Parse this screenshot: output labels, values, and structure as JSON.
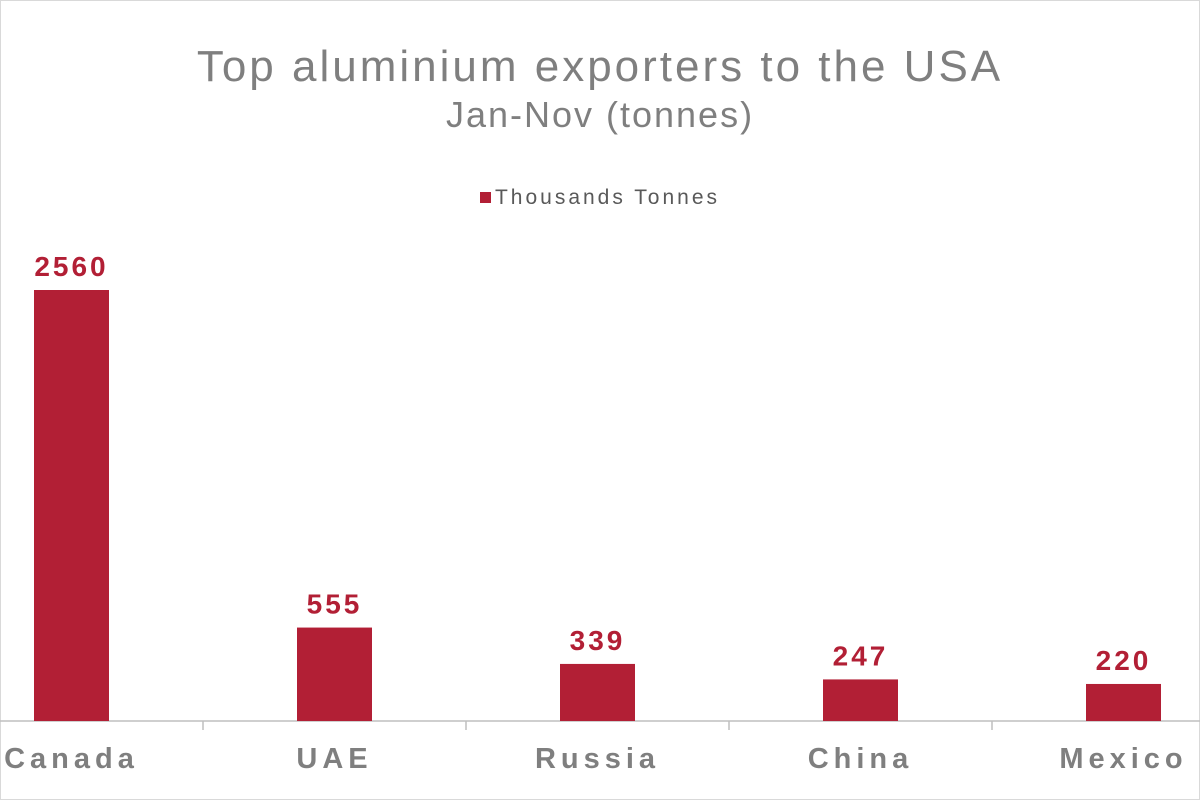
{
  "chart_data": {
    "type": "bar",
    "title": "Top aluminium exporters to the USA",
    "subtitle": "Jan-Nov (tonnes)",
    "categories": [
      "Canada",
      "UAE",
      "Russia",
      "China",
      "Mexico"
    ],
    "series": [
      {
        "name": "Thousands Tonnes",
        "values": [
          2560,
          555,
          339,
          247,
          220
        ],
        "color": "#b21f35"
      }
    ],
    "data_labels": [
      "2560",
      "555",
      "339",
      "247",
      "220"
    ],
    "ylim": [
      0,
      2560
    ],
    "grid": false,
    "legend_position": "top",
    "axis_color": "#bfbfbf"
  }
}
